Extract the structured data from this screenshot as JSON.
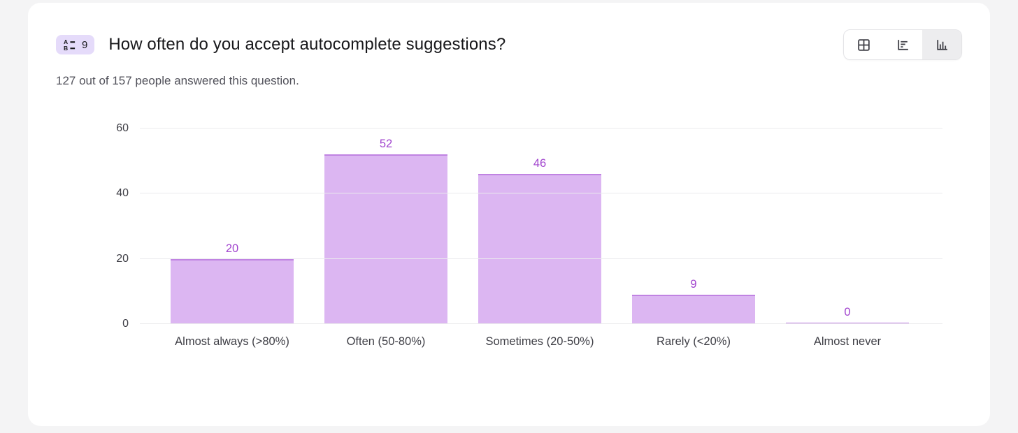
{
  "page": {
    "background": "#f4f4f5",
    "card_background": "#ffffff"
  },
  "header": {
    "badge": {
      "number": "9",
      "icon": "choice-list-icon",
      "background": "#e5dbfa"
    },
    "title": "How often do you accept autocomplete suggestions?",
    "view_toggle": [
      {
        "label": "Table view",
        "icon": "table-icon",
        "active": false
      },
      {
        "label": "Horizontal bar chart view",
        "icon": "horizontal-bar-chart-icon",
        "active": false
      },
      {
        "label": "Vertical bar chart view",
        "icon": "vertical-bar-chart-icon",
        "active": true
      }
    ]
  },
  "subtitle": "127 out of 157 people answered this question.",
  "chart_data": {
    "type": "bar",
    "categories": [
      "Almost always (>80%)",
      "Often (50-80%)",
      "Sometimes (20-50%)",
      "Rarely (<20%)",
      "Almost never"
    ],
    "values": [
      20,
      52,
      46,
      9,
      0
    ],
    "title": "How often do you accept autocomplete suggestions?",
    "xlabel": "",
    "ylabel": "",
    "ylim": [
      0,
      60
    ],
    "yticks": [
      0,
      20,
      40,
      60
    ],
    "grid": true,
    "legend": "none",
    "colors": {
      "bar_fill": "#dcb6f2",
      "bar_border": "#c083e2",
      "value_label": "#a144ce",
      "gridline": "#ebebed",
      "axis_label": "#3f3f46"
    }
  }
}
